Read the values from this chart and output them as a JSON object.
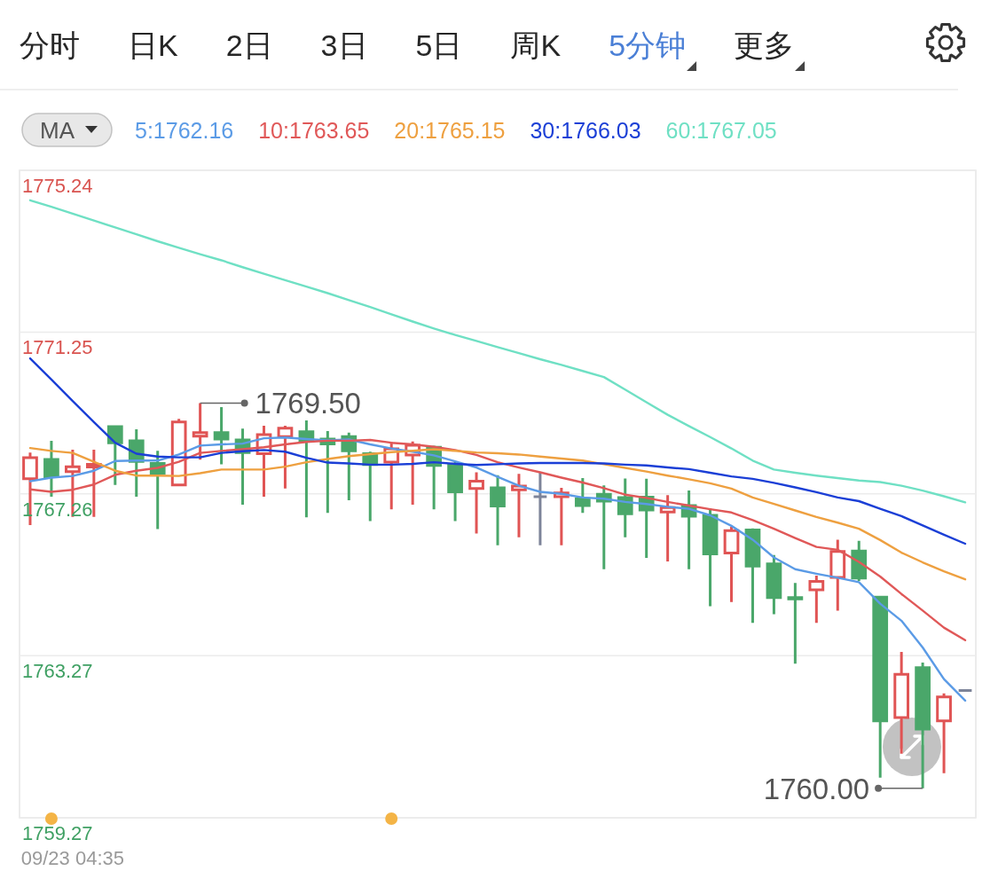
{
  "chart_data": {
    "type": "candlestick",
    "title": "5分钟",
    "annotations": [
      "分时",
      "日K",
      "2日",
      "3日",
      "5日",
      "周K",
      "更多",
      "1769.50",
      "1760.00"
    ],
    "legend_title": "MA",
    "legend": "top left",
    "grid": "y",
    "categories": [
      null,
      null,
      "09/23 04:35",
      null,
      null,
      null,
      null,
      null,
      null,
      null,
      null,
      null,
      null,
      null,
      null,
      null,
      null,
      null,
      null,
      null,
      null,
      null,
      null,
      null,
      null,
      null,
      null,
      null,
      null,
      null,
      null,
      null,
      null,
      null,
      null,
      null,
      null,
      null,
      null,
      null,
      null,
      null,
      null,
      null,
      null
    ],
    "ohlc": [
      [
        1767.63,
        1768.28,
        1766.49,
        1768.15
      ],
      [
        1768.11,
        1768.57,
        1767.19,
        1767.68
      ],
      [
        1767.81,
        1768.35,
        1766.69,
        1767.93
      ],
      [
        1767.92,
        1768.35,
        1766.69,
        1767.99
      ],
      [
        1768.92,
        1768.92,
        1767.48,
        1768.52
      ],
      [
        1768.57,
        1768.85,
        1767.19,
        1768.06
      ],
      [
        1768.01,
        1768.32,
        1766.39,
        1767.77
      ],
      [
        1767.48,
        1769.11,
        1767.48,
        1769.03
      ],
      [
        1768.68,
        1769.5,
        1768.1,
        1768.77
      ],
      [
        1768.77,
        1769.4,
        1767.99,
        1768.61
      ],
      [
        1768.59,
        1768.87,
        1766.99,
        1768.28
      ],
      [
        1768.25,
        1768.94,
        1767.19,
        1768.72
      ],
      [
        1768.67,
        1768.94,
        1767.39,
        1768.88
      ],
      [
        1768.79,
        1769.07,
        1766.68,
        1768.57
      ],
      [
        1768.61,
        1768.81,
        1766.79,
        1768.49
      ],
      [
        1768.67,
        1768.77,
        1767.1,
        1768.32
      ],
      [
        1768.25,
        1768.3,
        1766.59,
        1767.98
      ],
      [
        1768.04,
        1768.54,
        1766.88,
        1768.37
      ],
      [
        1768.22,
        1768.55,
        1766.99,
        1768.46
      ],
      [
        1768.41,
        1768.45,
        1766.88,
        1767.96
      ],
      [
        1767.99,
        1768.04,
        1766.59,
        1767.31
      ],
      [
        1767.39,
        1767.79,
        1766.28,
        1767.57
      ],
      [
        1767.41,
        1767.72,
        1765.99,
        1766.96
      ],
      [
        1767.36,
        1767.75,
        1766.19,
        1767.45
      ],
      [
        1767.19,
        1767.79,
        1765.99,
        1767.19
      ],
      [
        1767.19,
        1767.41,
        1765.99,
        1767.28
      ],
      [
        1767.14,
        1767.65,
        1766.79,
        1766.97
      ],
      [
        1767.25,
        1767.47,
        1765.4,
        1767.08
      ],
      [
        1767.17,
        1767.64,
        1766.19,
        1766.77
      ],
      [
        1767.18,
        1767.63,
        1765.68,
        1766.86
      ],
      [
        1766.81,
        1767.23,
        1765.59,
        1766.92
      ],
      [
        1766.97,
        1767.34,
        1765.4,
        1766.71
      ],
      [
        1766.73,
        1766.9,
        1764.49,
        1765.78
      ],
      [
        1765.8,
        1766.45,
        1764.59,
        1766.35
      ],
      [
        1766.37,
        1766.41,
        1764.08,
        1765.48
      ],
      [
        1765.53,
        1765.75,
        1764.29,
        1764.7
      ],
      [
        1764.7,
        1765.06,
        1763.07,
        1764.67
      ],
      [
        1764.89,
        1765.24,
        1764.08,
        1765.1
      ],
      [
        1765.2,
        1766.13,
        1764.38,
        1765.84
      ],
      [
        1765.85,
        1766.1,
        1765.11,
        1765.18
      ],
      [
        1764.71,
        1764.71,
        1760.26,
        1761.66
      ],
      [
        1761.74,
        1763.36,
        1760.85,
        1762.81
      ],
      [
        1762.97,
        1763.1,
        1760,
        1761.46
      ],
      [
        1761.66,
        1762.34,
        1760.37,
        1762.25
      ],
      [
        1762.41,
        1762.41,
        1762.41,
        1762.41
      ]
    ],
    "colors": [
      "#e05454",
      "#4aa76a",
      "#e05454",
      "#e05454",
      "#4aa76a",
      "#4aa76a",
      "#4aa76a",
      "#e05454",
      "#e05454",
      "#4aa76a",
      "#4aa76a",
      "#e05454",
      "#e05454",
      "#4aa76a",
      "#4aa76a",
      "#4aa76a",
      "#4aa76a",
      "#e05454",
      "#e05454",
      "#4aa76a",
      "#4aa76a",
      "#e05454",
      "#4aa76a",
      "#e05454",
      "#7d8499",
      "#e05454",
      "#4aa76a",
      "#4aa76a",
      "#4aa76a",
      "#4aa76a",
      "#e05454",
      "#4aa76a",
      "#4aa76a",
      "#e05454",
      "#4aa76a",
      "#4aa76a",
      "#4aa76a",
      "#e05454",
      "#e05454",
      "#4aa76a",
      "#4aa76a",
      "#e05454",
      "#4aa76a",
      "#e05454",
      "#7d8499"
    ],
    "series": [
      {
        "name": "5:1762.16",
        "type": "line",
        "color": "#5b9be6",
        "values": [
          1767.57,
          1767.66,
          1767.7,
          1767.83,
          1768.07,
          1768.08,
          1768.08,
          1768.23,
          1768.45,
          1768.48,
          1768.5,
          1768.63,
          1768.65,
          1768.61,
          1768.58,
          1768.6,
          1768.48,
          1768.38,
          1768.3,
          1768.21,
          1768.06,
          1767.91,
          1767.68,
          1767.46,
          1767.31,
          1767.26,
          1767.17,
          1767.14,
          1767.06,
          1767.01,
          1766.94,
          1766.89,
          1766.73,
          1766.47,
          1766.13,
          1765.69,
          1765.4,
          1765.29,
          1765.19,
          1765.08,
          1764.55,
          1764.13,
          1763.47,
          1762.69,
          1762.16
        ]
      },
      {
        "name": "10:1763.65",
        "type": "line",
        "color": "#e05858",
        "values": [
          1767.37,
          1767.31,
          1767.36,
          1767.49,
          1767.73,
          1767.83,
          1767.9,
          1768.05,
          1768.27,
          1768.32,
          1768.36,
          1768.41,
          1768.48,
          1768.54,
          1768.57,
          1768.57,
          1768.59,
          1768.52,
          1768.48,
          1768.42,
          1768.34,
          1768.22,
          1768.04,
          1767.91,
          1767.79,
          1767.66,
          1767.54,
          1767.4,
          1767.24,
          1767.16,
          1767.06,
          1766.97,
          1766.88,
          1766.8,
          1766.61,
          1766.4,
          1766.17,
          1765.95,
          1765.88,
          1765.58,
          1765.22,
          1764.79,
          1764.38,
          1763.96,
          1763.65
        ]
      },
      {
        "name": "20:1765.15",
        "type": "line",
        "color": "#eea040",
        "values": [
          1768.39,
          1768.32,
          1768.27,
          1768.05,
          1767.83,
          1767.71,
          1767.71,
          1767.7,
          1767.77,
          1767.86,
          1767.86,
          1767.86,
          1767.93,
          1768.04,
          1768.12,
          1768.19,
          1768.24,
          1768.29,
          1768.32,
          1768.36,
          1768.32,
          1768.28,
          1768.26,
          1768.23,
          1768.18,
          1768.13,
          1768.08,
          1767.99,
          1767.9,
          1767.81,
          1767.71,
          1767.62,
          1767.52,
          1767.39,
          1767.17,
          1767.01,
          1766.85,
          1766.69,
          1766.55,
          1766.4,
          1766.12,
          1765.81,
          1765.57,
          1765.35,
          1765.15
        ]
      },
      {
        "name": "30:1766.03",
        "type": "line",
        "color": "#1b3fd6",
        "values": [
          1770.6,
          1770.08,
          1769.55,
          1769.03,
          1768.52,
          1768.25,
          1768.18,
          1768.16,
          1768.16,
          1768.27,
          1768.31,
          1768.34,
          1768.3,
          1768.15,
          1768.03,
          1768.01,
          1767.98,
          1767.98,
          1768,
          1768.04,
          1768,
          1767.97,
          1767.99,
          1768.01,
          1768.02,
          1768.02,
          1768.02,
          1768.01,
          1767.98,
          1767.96,
          1767.91,
          1767.87,
          1767.78,
          1767.69,
          1767.63,
          1767.53,
          1767.42,
          1767.3,
          1767.17,
          1767.08,
          1766.89,
          1766.71,
          1766.48,
          1766.25,
          1766.03
        ]
      },
      {
        "name": "60:1767.05",
        "type": "line",
        "color": "#6fe0c4",
        "values": [
          1774.5,
          1774.34,
          1774.17,
          1774,
          1773.83,
          1773.66,
          1773.49,
          1773.33,
          1773.17,
          1773.02,
          1772.85,
          1772.69,
          1772.53,
          1772.37,
          1772.21,
          1772.04,
          1771.87,
          1771.69,
          1771.51,
          1771.34,
          1771.18,
          1771.03,
          1770.88,
          1770.73,
          1770.58,
          1770.44,
          1770.29,
          1770.14,
          1769.83,
          1769.52,
          1769.21,
          1768.93,
          1768.66,
          1768.38,
          1768.08,
          1767.86,
          1767.78,
          1767.71,
          1767.65,
          1767.59,
          1767.55,
          1767.46,
          1767.34,
          1767.2,
          1767.05
        ]
      }
    ],
    "ylim": [
      1759.27,
      1775.24
    ],
    "yticks": [
      1775.24,
      1771.25,
      1767.26,
      1763.27,
      1759.27
    ]
  }
}
